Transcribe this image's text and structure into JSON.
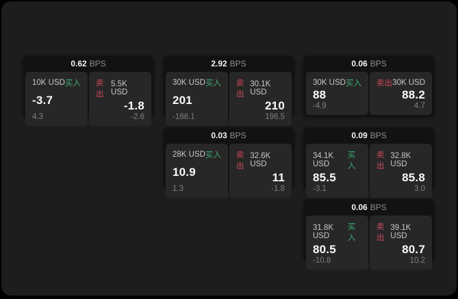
{
  "labels": {
    "bps_unit": "BPS",
    "buy": "买入",
    "sell": "卖出"
  },
  "colors": {
    "buy_accent": "#3fae73",
    "sell_accent": "#cd4a5c",
    "panel_background": "#272727",
    "card_background": "#121212",
    "app_background": "#1d1d1d"
  },
  "cards": [
    {
      "bps": "0.62",
      "buy": {
        "size": "10K USD",
        "price": "-3.7",
        "delta": "4.3"
      },
      "sell": {
        "size": "5.5K USD",
        "price": "-1.8",
        "delta": "-2.6"
      }
    },
    {
      "bps": "2.92",
      "buy": {
        "size": "30K USD",
        "price": "201",
        "delta": "-188.1"
      },
      "sell": {
        "size": "30.1K USD",
        "price": "210",
        "delta": "196.5"
      }
    },
    {
      "bps": "0.06",
      "buy": {
        "size": "30K USD",
        "price": "88",
        "delta": "-4.9"
      },
      "sell": {
        "size": "30K USD",
        "price": "88.2",
        "delta": "4.7"
      }
    },
    {
      "bps": "0.03",
      "buy": {
        "size": "28K USD",
        "price": "10.9",
        "delta": "1.3"
      },
      "sell": {
        "size": "32.6K USD",
        "price": "11",
        "delta": "-1.8"
      }
    },
    {
      "bps": "0.09",
      "buy": {
        "size": "34.1K USD",
        "price": "85.5",
        "delta": "-3.1"
      },
      "sell": {
        "size": "32.8K USD",
        "price": "85.8",
        "delta": "3.0"
      }
    },
    {
      "bps": "0.06",
      "buy": {
        "size": "31.8K USD",
        "price": "80.5",
        "delta": "-10.8"
      },
      "sell": {
        "size": "39.1K USD",
        "price": "80.7",
        "delta": "10.2"
      }
    }
  ]
}
